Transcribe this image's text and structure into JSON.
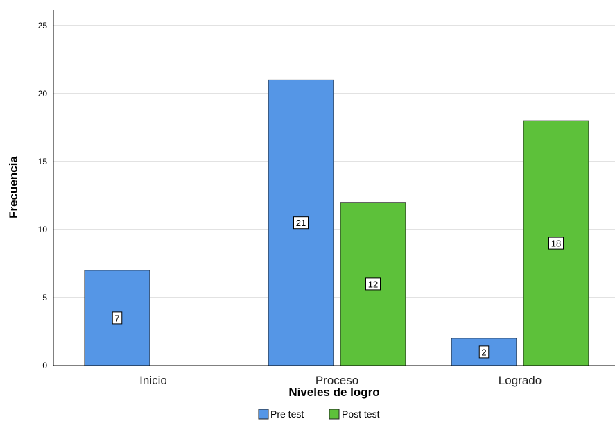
{
  "chart_data": {
    "type": "bar",
    "categories": [
      "Inicio",
      "Proceso",
      "Logrado"
    ],
    "series": [
      {
        "name": "Pre test",
        "values": [
          7,
          21,
          2
        ],
        "color": "#5596e6"
      },
      {
        "name": "Post test",
        "values": [
          0,
          12,
          18
        ],
        "color": "#5dc13a"
      }
    ],
    "xlabel": "Niveles de logro",
    "ylabel": "Frecuencia",
    "ylim": [
      0,
      26
    ],
    "yticks": [
      0,
      5,
      10,
      15,
      20,
      25
    ],
    "grid": true,
    "legend": "bottom"
  }
}
